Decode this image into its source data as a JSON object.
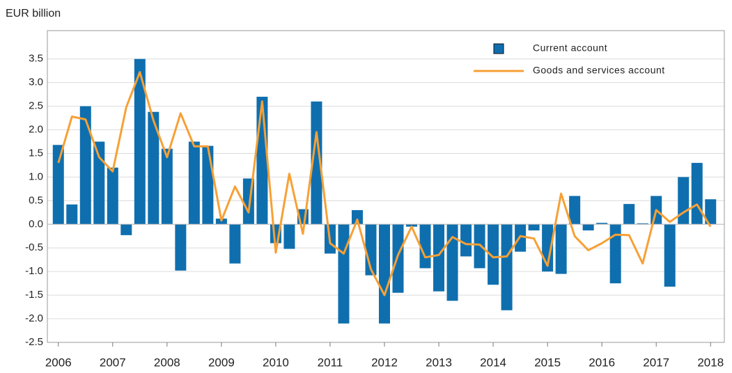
{
  "chart_data": {
    "type": "bar_line",
    "y_axis_label": "EUR billion",
    "categories": [
      "2006",
      null,
      null,
      null,
      "2007",
      null,
      null,
      null,
      "2008",
      null,
      null,
      null,
      "2009",
      null,
      null,
      null,
      "2010",
      null,
      null,
      null,
      "2011",
      null,
      null,
      null,
      "2012",
      null,
      null,
      null,
      "2013",
      null,
      null,
      null,
      "2014",
      null,
      null,
      null,
      "2015",
      null,
      null,
      null,
      "2016",
      null,
      null,
      null,
      "2017",
      null,
      null,
      null,
      "2018"
    ],
    "series": [
      {
        "name": "Current account",
        "type": "bar",
        "color": "#0f6fae",
        "values": [
          1.68,
          0.42,
          2.5,
          1.75,
          1.2,
          -0.23,
          3.5,
          2.38,
          1.6,
          -0.98,
          1.75,
          1.66,
          0.12,
          -0.83,
          0.97,
          2.7,
          -0.4,
          -0.52,
          0.32,
          2.6,
          -0.62,
          -2.1,
          0.3,
          -1.08,
          -2.1,
          -1.45,
          -0.05,
          -0.93,
          -1.42,
          -1.62,
          -0.68,
          -0.93,
          -1.28,
          -1.82,
          -0.58,
          -0.13,
          -1.0,
          -1.05,
          0.6,
          -0.13,
          0.03,
          -1.25,
          0.43,
          0.02,
          0.6,
          -1.32,
          1.0,
          1.3,
          0.53
        ]
      },
      {
        "name": "Goods and services account",
        "type": "line",
        "color": "#f7a035",
        "values": [
          1.3,
          2.28,
          2.22,
          1.42,
          1.12,
          2.48,
          3.22,
          2.2,
          1.42,
          2.35,
          1.65,
          1.65,
          0.08,
          0.8,
          0.25,
          2.6,
          -0.6,
          1.07,
          -0.2,
          1.95,
          -0.4,
          -0.62,
          0.1,
          -0.95,
          -1.5,
          -0.65,
          -0.05,
          -0.7,
          -0.65,
          -0.27,
          -0.42,
          -0.43,
          -0.7,
          -0.68,
          -0.25,
          -0.3,
          -0.88,
          0.65,
          -0.25,
          -0.55,
          -0.4,
          -0.22,
          -0.23,
          -0.83,
          0.3,
          0.05,
          0.25,
          0.42,
          -0.05
        ]
      }
    ],
    "ylim": [
      -2.5,
      4.1
    ],
    "yticks": [
      -2.5,
      {
        "value": -2,
        "label": "-2.0"
      },
      -1.5,
      {
        "value": -1,
        "label": "-1.0"
      },
      -0.5,
      {
        "value": 0,
        "label": "0.0"
      },
      0.5,
      {
        "value": 1,
        "label": "1.0"
      },
      1.5,
      {
        "value": 2,
        "label": "2.0"
      },
      2.5,
      {
        "value": 3,
        "label": "3.0"
      },
      3.5
    ],
    "grid": true,
    "legend": "upper right"
  }
}
